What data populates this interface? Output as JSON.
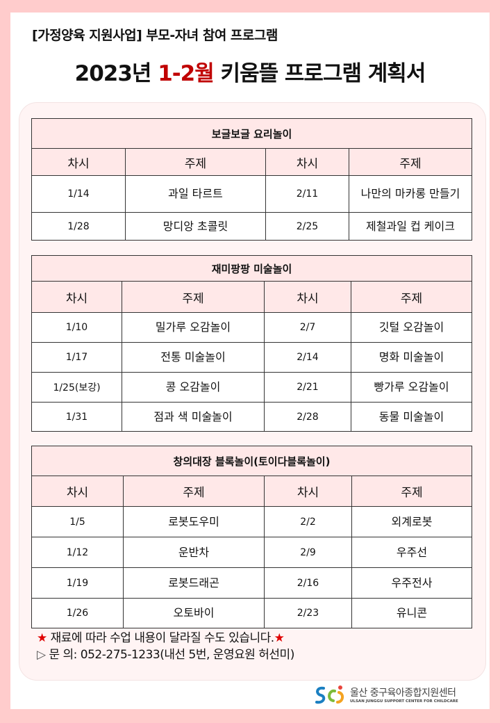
{
  "header": {
    "subtitle": "[가정양육 지원사업] 부모-자녀 참여 프로그램",
    "title_pre": "2023년 ",
    "title_red": "1-2월",
    "title_post": " 키움뜰 프로그램 계획서"
  },
  "colors": {
    "background": "#ffcccc",
    "accent_red": "#c00000",
    "header_fill": "#ffe8e8"
  },
  "col_headers": {
    "session": "차시",
    "topic": "주제"
  },
  "tables": [
    {
      "title": "보글보글 요리놀이",
      "rows": [
        {
          "d1": "1/14",
          "t1": "과일 타르트",
          "d2": "2/11",
          "t2": "나만의 마카롱 만들기"
        },
        {
          "d1": "1/28",
          "t1": "망디앙 초콜릿",
          "d2": "2/25",
          "t2": "제철과일 컵 케이크"
        }
      ]
    },
    {
      "title": "재미팡팡 미술놀이",
      "rows": [
        {
          "d1": "1/10",
          "t1": "밀가루 오감놀이",
          "d2": "2/7",
          "t2": "깃털 오감놀이"
        },
        {
          "d1": "1/17",
          "t1": "전통 미술놀이",
          "d2": "2/14",
          "t2": "명화 미술놀이"
        },
        {
          "d1": "1/25(보강)",
          "t1": "콩 오감놀이",
          "d2": "2/21",
          "t2": "빵가루 오감놀이"
        },
        {
          "d1": "1/31",
          "t1": "점과 색 미술놀이",
          "d2": "2/28",
          "t2": "동물 미술놀이"
        }
      ]
    },
    {
      "title": "창의대장 블록놀이(토이다블록놀이)",
      "rows": [
        {
          "d1": "1/5",
          "t1": "로봇도우미",
          "d2": "2/2",
          "t2": "외계로봇"
        },
        {
          "d1": "1/12",
          "t1": "운반차",
          "d2": "2/9",
          "t2": "우주선"
        },
        {
          "d1": "1/19",
          "t1": "로봇드래곤",
          "d2": "2/16",
          "t2": "우주전사"
        },
        {
          "d1": "1/26",
          "t1": "오토바이",
          "d2": "2/23",
          "t2": "유니콘"
        }
      ]
    }
  ],
  "notes": {
    "star": "★",
    "notice": " 재료에 따라 수업 내용이 달라질 수도 있습니다.",
    "contact_icon": "▷",
    "contact": " 문 의: 052-275-1233(내선 5번, 운영요원 허선미)"
  },
  "logo": {
    "name_ko": "울산 중구육아종합지원센터",
    "name_en": "ULSAN JUNGGU SUPPORT CENTER FOR CHILDCARE"
  }
}
